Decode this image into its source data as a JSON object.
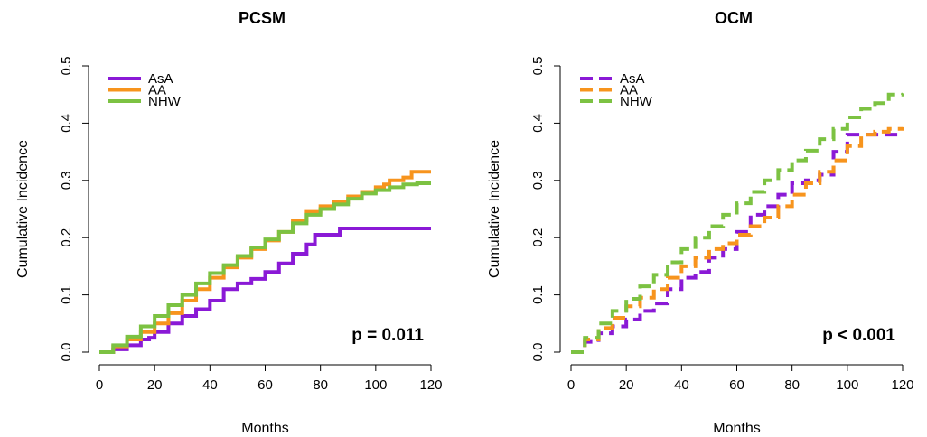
{
  "chart_data": [
    {
      "type": "line",
      "title": "PCSM",
      "xlabel": "Months",
      "ylabel": "Cumulative Incidence",
      "xlim": [
        0,
        120
      ],
      "ylim": [
        0,
        0.5
      ],
      "xticks": [
        "0",
        "20",
        "40",
        "60",
        "80",
        "100",
        "120"
      ],
      "yticks": [
        "0.0",
        "0.1",
        "0.2",
        "0.3",
        "0.4",
        "0.5"
      ],
      "line_style": "solid",
      "legend_position": "top-left",
      "annotation": "p = 0.011",
      "series": [
        {
          "name": "AsA",
          "color": "#8a19d6",
          "x": [
            0,
            5,
            10,
            15,
            18,
            20,
            25,
            30,
            35,
            40,
            45,
            50,
            55,
            60,
            65,
            70,
            75,
            78,
            80,
            87,
            90,
            100,
            110,
            120
          ],
          "y": [
            0.0,
            0.005,
            0.012,
            0.022,
            0.025,
            0.035,
            0.05,
            0.063,
            0.075,
            0.09,
            0.11,
            0.12,
            0.128,
            0.14,
            0.155,
            0.172,
            0.188,
            0.205,
            0.205,
            0.216,
            0.216,
            0.216,
            0.216,
            0.216
          ]
        },
        {
          "name": "AA",
          "color": "#f7941d",
          "x": [
            0,
            5,
            10,
            15,
            20,
            25,
            30,
            35,
            40,
            45,
            50,
            55,
            60,
            65,
            70,
            75,
            80,
            85,
            90,
            95,
            100,
            103,
            105,
            110,
            113,
            120
          ],
          "y": [
            0.0,
            0.01,
            0.022,
            0.035,
            0.05,
            0.068,
            0.09,
            0.11,
            0.13,
            0.148,
            0.165,
            0.18,
            0.195,
            0.21,
            0.23,
            0.245,
            0.255,
            0.262,
            0.272,
            0.28,
            0.288,
            0.293,
            0.3,
            0.305,
            0.315,
            0.315
          ]
        },
        {
          "name": "NHW",
          "color": "#7cc242",
          "x": [
            0,
            5,
            10,
            15,
            20,
            25,
            30,
            35,
            40,
            45,
            50,
            55,
            60,
            65,
            70,
            75,
            80,
            85,
            90,
            95,
            100,
            105,
            110,
            115,
            120
          ],
          "y": [
            0.0,
            0.012,
            0.027,
            0.045,
            0.063,
            0.082,
            0.1,
            0.12,
            0.138,
            0.152,
            0.168,
            0.183,
            0.197,
            0.21,
            0.225,
            0.24,
            0.25,
            0.258,
            0.268,
            0.277,
            0.283,
            0.288,
            0.293,
            0.295,
            0.295
          ]
        }
      ]
    },
    {
      "type": "line",
      "title": "OCM",
      "xlabel": "Months",
      "ylabel": "Cumulative Incidence",
      "xlim": [
        0,
        120
      ],
      "ylim": [
        0,
        0.5
      ],
      "xticks": [
        "0",
        "20",
        "40",
        "60",
        "80",
        "100",
        "120"
      ],
      "yticks": [
        "0.0",
        "0.1",
        "0.2",
        "0.3",
        "0.4",
        "0.5"
      ],
      "line_style": "dashed",
      "legend_position": "top-left",
      "annotation": "p < 0.001",
      "series": [
        {
          "name": "AsA",
          "color": "#8a19d6",
          "x": [
            0,
            5,
            10,
            15,
            20,
            25,
            30,
            35,
            40,
            45,
            50,
            55,
            60,
            65,
            70,
            75,
            80,
            85,
            90,
            95,
            100,
            105,
            110,
            115,
            120
          ],
          "y": [
            0.0,
            0.018,
            0.033,
            0.045,
            0.057,
            0.072,
            0.085,
            0.11,
            0.13,
            0.14,
            0.165,
            0.18,
            0.21,
            0.24,
            0.255,
            0.275,
            0.295,
            0.3,
            0.31,
            0.35,
            0.38,
            0.38,
            0.38,
            0.38,
            0.38
          ]
        },
        {
          "name": "AA",
          "color": "#f7941d",
          "x": [
            0,
            5,
            10,
            15,
            20,
            25,
            30,
            35,
            40,
            45,
            50,
            55,
            60,
            65,
            70,
            75,
            80,
            85,
            90,
            95,
            100,
            105,
            110,
            115,
            120
          ],
          "y": [
            0.0,
            0.022,
            0.042,
            0.06,
            0.08,
            0.095,
            0.11,
            0.13,
            0.15,
            0.165,
            0.18,
            0.19,
            0.205,
            0.22,
            0.235,
            0.255,
            0.275,
            0.295,
            0.315,
            0.335,
            0.36,
            0.38,
            0.385,
            0.39,
            0.393
          ]
        },
        {
          "name": "NHW",
          "color": "#7cc242",
          "x": [
            0,
            5,
            10,
            15,
            20,
            25,
            30,
            35,
            40,
            45,
            50,
            55,
            60,
            65,
            70,
            75,
            80,
            85,
            90,
            95,
            100,
            105,
            110,
            115,
            120
          ],
          "y": [
            0.0,
            0.025,
            0.05,
            0.072,
            0.093,
            0.115,
            0.135,
            0.157,
            0.18,
            0.2,
            0.22,
            0.24,
            0.26,
            0.28,
            0.3,
            0.318,
            0.335,
            0.352,
            0.372,
            0.39,
            0.41,
            0.425,
            0.435,
            0.45,
            0.452
          ]
        }
      ]
    }
  ]
}
